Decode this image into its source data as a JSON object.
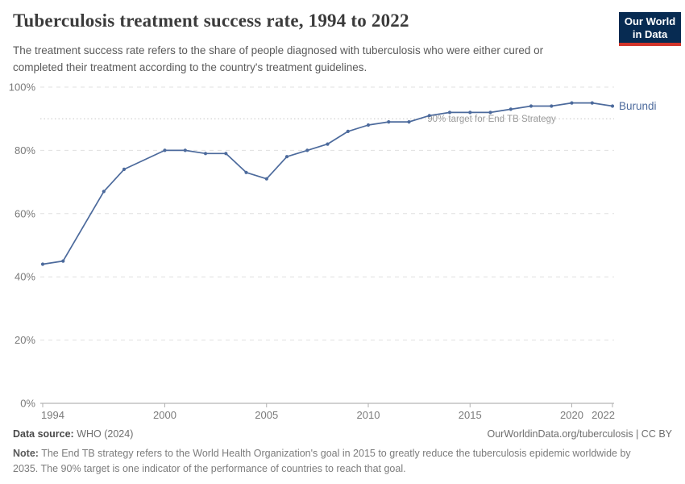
{
  "header": {
    "title": "Tuberculosis treatment success rate, 1994 to 2022",
    "subtitle": "The treatment success rate refers to the share of people diagnosed with tuberculosis who were either cured or completed their treatment according to the country's treatment guidelines.",
    "logo_line1": "Our World",
    "logo_line2": "in Data",
    "logo_colors": {
      "background": "#072b52",
      "stripe": "#d2342a",
      "text": "#ffffff"
    }
  },
  "chart_data": {
    "type": "line",
    "title": "Tuberculosis treatment success rate, 1994 to 2022",
    "x": [
      1994,
      1995,
      1997,
      1998,
      2000,
      2001,
      2002,
      2003,
      2004,
      2005,
      2006,
      2007,
      2008,
      2009,
      2010,
      2011,
      2012,
      2013,
      2014,
      2015,
      2016,
      2017,
      2018,
      2019,
      2020,
      2021,
      2022
    ],
    "series": [
      {
        "name": "Burundi",
        "values": [
          44,
          45,
          67,
          74,
          80,
          80,
          79,
          79,
          73,
          71,
          78,
          80,
          82,
          86,
          88,
          89,
          89,
          91,
          92,
          92,
          92,
          93,
          94,
          94,
          95,
          95,
          94
        ]
      }
    ],
    "missing_years": [
      1996,
      1999
    ],
    "xlim": [
      1994,
      2022
    ],
    "ylim": [
      0,
      100
    ],
    "x_ticks": [
      1994,
      2000,
      2005,
      2010,
      2015,
      2020,
      2022
    ],
    "y_ticks": [
      0,
      20,
      40,
      60,
      80,
      100
    ],
    "y_tick_suffix": "%",
    "grid": "horizontal-dashed",
    "legend_position": "end-of-line-label",
    "end_label": "Burundi",
    "annotation": {
      "value": 90,
      "label": "90% target for End TB Strategy"
    },
    "colors": {
      "line": "#4C6A9C",
      "grid": "#e0e0e0",
      "axis": "#a3a3a3",
      "tick": "#b0b0b0",
      "axis_text": "#7a7a7a",
      "target_line": "#c6c6c6",
      "annotation_text": "#9b9b9b"
    }
  },
  "footer": {
    "source_label": "Data source:",
    "source_value": "WHO (2024)",
    "link": "OurWorldinData.org/tuberculosis | CC BY",
    "note_label": "Note:",
    "note_value": "The End TB strategy refers to the World Health Organization's goal in 2015 to greatly reduce the tuberculosis epidemic worldwide by 2035. The 90% target is one indicator of the performance of countries to reach that goal."
  }
}
